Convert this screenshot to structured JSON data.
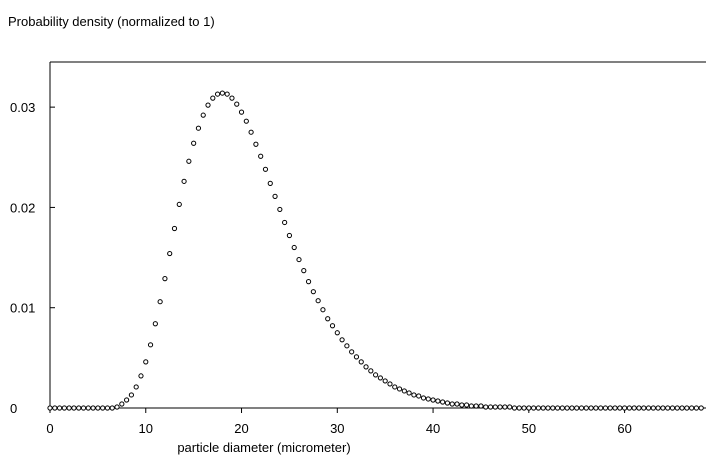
{
  "chart_data": {
    "type": "scatter",
    "title": "Probability density (normalized to 1)",
    "xlabel": "particle diameter (micrometer)",
    "ylabel": "",
    "xlim": [
      0,
      68.5
    ],
    "ylim": [
      0,
      0.0345
    ],
    "x_ticks": [
      0,
      10,
      20,
      30,
      40,
      50,
      60
    ],
    "x_tick_labels": [
      "0",
      "10",
      "20",
      "30",
      "40",
      "50",
      "60"
    ],
    "y_ticks": [
      0,
      0.01,
      0.02,
      0.03
    ],
    "y_tick_labels": [
      "0",
      "0.01",
      "0.02",
      "0.03"
    ],
    "grid": false,
    "legend": "none",
    "marker": "open-circle",
    "colors": {
      "axis": "#000000",
      "marker": "#000000"
    },
    "series": [
      {
        "x": [
          0.0,
          0.5,
          1.0,
          1.5,
          2.0,
          2.5,
          3.0,
          3.5,
          4.0,
          4.5,
          5.0,
          5.5,
          6.0,
          6.5,
          7.0,
          7.5,
          8.0,
          8.5,
          9.0,
          9.5,
          10.0,
          10.5,
          11.0,
          11.5,
          12.0,
          12.5,
          13.0,
          13.5,
          14.0,
          14.5,
          15.0,
          15.5,
          16.0,
          16.5,
          17.0,
          17.5,
          18.0,
          18.5,
          19.0,
          19.5,
          20.0,
          20.5,
          21.0,
          21.5,
          22.0,
          22.5,
          23.0,
          23.5,
          24.0,
          24.5,
          25.0,
          25.5,
          26.0,
          26.5,
          27.0,
          27.5,
          28.0,
          28.5,
          29.0,
          29.5,
          30.0,
          30.5,
          31.0,
          31.5,
          32.0,
          32.5,
          33.0,
          33.5,
          34.0,
          34.5,
          35.0,
          35.5,
          36.0,
          36.5,
          37.0,
          37.5,
          38.0,
          38.5,
          39.0,
          39.5,
          40.0,
          40.5,
          41.0,
          41.5,
          42.0,
          42.5,
          43.0,
          43.5,
          44.0,
          44.5,
          45.0,
          45.5,
          46.0,
          46.5,
          47.0,
          47.5,
          48.0,
          48.5,
          49.0,
          49.5,
          50.0,
          50.5,
          51.0,
          51.5,
          52.0,
          52.5,
          53.0,
          53.5,
          54.0,
          54.5,
          55.0,
          55.5,
          56.0,
          56.5,
          57.0,
          57.5,
          58.0,
          58.5,
          59.0,
          59.5,
          60.0,
          60.5,
          61.0,
          61.5,
          62.0,
          62.5,
          63.0,
          63.5,
          64.0,
          64.5,
          65.0,
          65.5,
          66.0,
          66.5,
          67.0,
          67.5,
          68.0
        ],
        "y": [
          0.0,
          0.0,
          0.0,
          0.0,
          0.0,
          0.0,
          0.0,
          0.0,
          0.0,
          0.0,
          0.0,
          0.0,
          0.0,
          0.0,
          0.0001,
          0.0004,
          0.0008,
          0.0013,
          0.0021,
          0.0032,
          0.0046,
          0.0063,
          0.0084,
          0.0106,
          0.0129,
          0.0154,
          0.0179,
          0.0203,
          0.0226,
          0.0246,
          0.0264,
          0.0279,
          0.0292,
          0.0302,
          0.0309,
          0.0313,
          0.0314,
          0.0313,
          0.0309,
          0.0303,
          0.0295,
          0.0286,
          0.0275,
          0.0263,
          0.0251,
          0.0238,
          0.0224,
          0.0211,
          0.0198,
          0.0185,
          0.0172,
          0.016,
          0.0148,
          0.0137,
          0.0126,
          0.0116,
          0.0107,
          0.0098,
          0.0089,
          0.0082,
          0.0075,
          0.0068,
          0.0062,
          0.0056,
          0.0051,
          0.0046,
          0.0041,
          0.0037,
          0.0033,
          0.003,
          0.0027,
          0.0024,
          0.0021,
          0.0019,
          0.0017,
          0.0015,
          0.0013,
          0.0012,
          0.001,
          0.0009,
          0.0008,
          0.0007,
          0.0006,
          0.0005,
          0.0004,
          0.0004,
          0.0003,
          0.0003,
          0.0002,
          0.0002,
          0.0002,
          0.0001,
          0.0001,
          0.0001,
          0.0001,
          0.0001,
          0.0001,
          0.0,
          0.0,
          0.0,
          0.0,
          0.0,
          0.0,
          0.0,
          0.0,
          0.0,
          0.0,
          0.0,
          0.0,
          0.0,
          0.0,
          0.0,
          0.0,
          0.0,
          0.0,
          0.0,
          0.0,
          0.0,
          0.0,
          0.0,
          0.0,
          0.0,
          0.0,
          0.0,
          0.0,
          0.0,
          0.0,
          0.0,
          0.0,
          0.0,
          0.0,
          0.0,
          0.0,
          0.0,
          0.0,
          0.0,
          0.0
        ]
      }
    ]
  }
}
